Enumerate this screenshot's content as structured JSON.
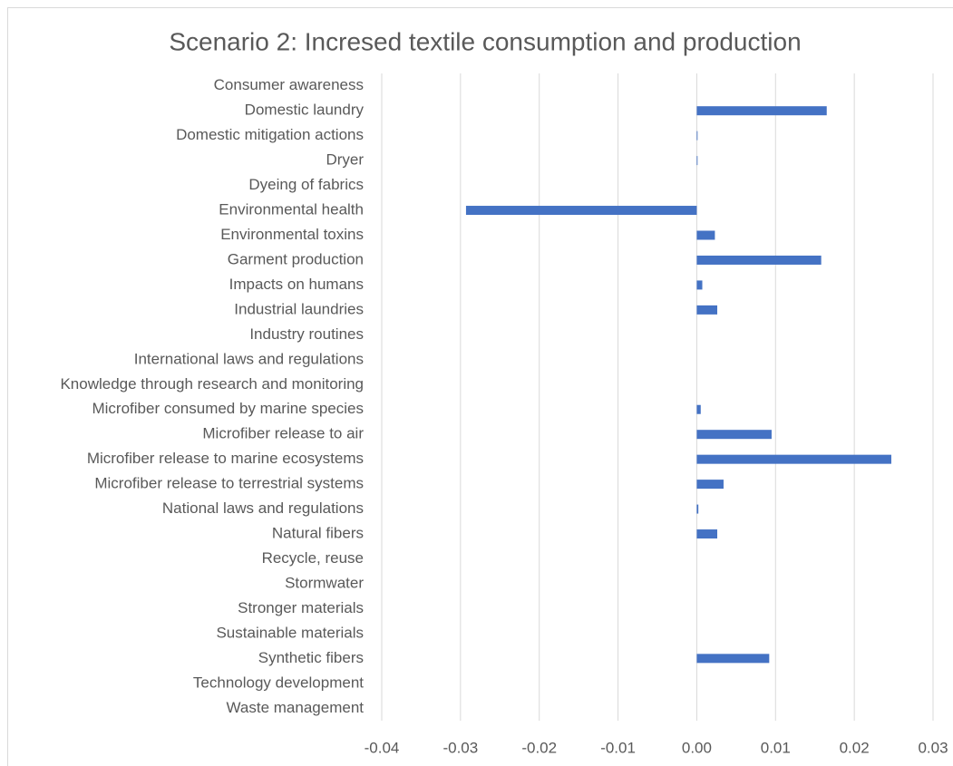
{
  "chart_data": {
    "type": "barh",
    "title": "Scenario 2: Incresed textile consumption and production",
    "categories": [
      "Consumer awareness",
      "Domestic laundry",
      "Domestic mitigation actions",
      "Dryer",
      "Dyeing of fabrics",
      "Environmental health",
      "Environmental toxins",
      "Garment production",
      "Impacts on humans",
      "Industrial laundries",
      "Industry routines",
      "International laws and regulations",
      "Knowledge through research and monitoring",
      "Microfiber consumed by marine species",
      "Microfiber release to air",
      "Microfiber release to marine ecosystems",
      "Microfiber release to terrestrial systems",
      "National laws and regulations",
      "Natural fibers",
      "Recycle, reuse",
      "Stormwater",
      "Stronger materials",
      "Sustainable materials",
      "Synthetic fibers",
      "Technology development",
      "Waste management"
    ],
    "values": [
      0,
      0.0165,
      0.0001,
      0.0001,
      0,
      -0.0293,
      0.0023,
      0.0158,
      0.0007,
      0.0026,
      0,
      0,
      0,
      0.0005,
      0.0095,
      0.0247,
      0.0034,
      0.0002,
      0.0026,
      0,
      0,
      0,
      0,
      0.0092,
      0,
      0
    ],
    "color": "#4472c4",
    "xlim": [
      -0.04,
      0.03
    ],
    "xticks": [
      -0.04,
      -0.03,
      -0.02,
      -0.01,
      {
        "value": 0,
        "label": "0.00"
      },
      0.01,
      0.02,
      0.03
    ],
    "grid": true
  }
}
